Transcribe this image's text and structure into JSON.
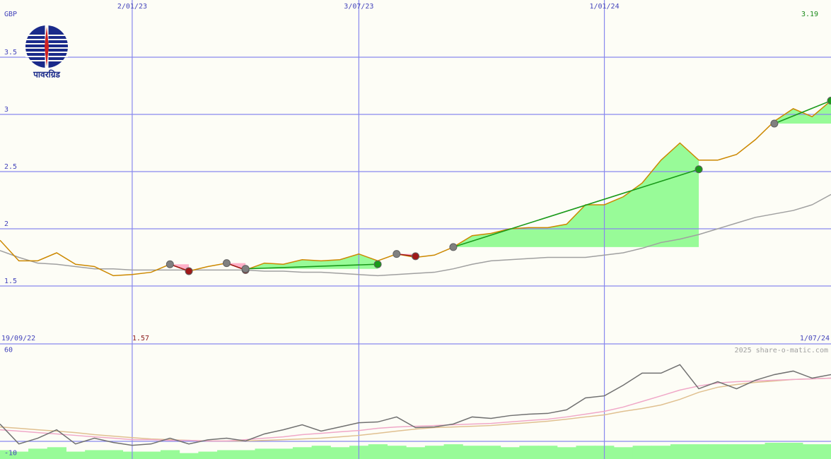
{
  "logo": {
    "text": "पावरग्रिड"
  },
  "chart_data": [
    {
      "type": "line",
      "unit": "GBP",
      "last_price": 3.19,
      "low_price": 1.57,
      "credit": "2025 share-o-matic.com",
      "categories": [
        "19/09/22",
        null,
        null,
        null,
        null,
        null,
        null,
        "2/01/23",
        null,
        null,
        null,
        null,
        null,
        null,
        null,
        null,
        null,
        null,
        null,
        "3/07/23",
        null,
        null,
        null,
        null,
        null,
        null,
        null,
        null,
        null,
        null,
        null,
        null,
        "1/01/24",
        null,
        null,
        null,
        null,
        null,
        null,
        null,
        null,
        null,
        null,
        null,
        "1/07/24"
      ],
      "series": [
        {
          "color": "#a0a0a0",
          "values": [
            1.81,
            1.75,
            1.7,
            1.69,
            1.67,
            1.65,
            1.65,
            1.64,
            1.64,
            1.64,
            1.64,
            1.64,
            1.64,
            1.64,
            1.63,
            1.63,
            1.62,
            1.62,
            1.61,
            1.6,
            1.59,
            1.6,
            1.61,
            1.62,
            1.65,
            1.69,
            1.72,
            1.73,
            1.74,
            1.75,
            1.75,
            1.75,
            1.77,
            1.79,
            1.83,
            1.88,
            1.91,
            1.95,
            2.0,
            2.05,
            2.1,
            2.13,
            2.16,
            2.21,
            2.3
          ]
        },
        {
          "color": "#cc8800",
          "values": [
            1.9,
            1.72,
            1.72,
            1.79,
            1.69,
            1.67,
            1.59,
            1.6,
            1.62,
            1.69,
            1.63,
            1.67,
            1.7,
            1.64,
            1.7,
            1.69,
            1.73,
            1.72,
            1.73,
            1.78,
            1.72,
            1.78,
            1.75,
            1.77,
            1.84,
            1.94,
            1.96,
            2.0,
            2.01,
            2.01,
            2.04,
            2.21,
            2.21,
            2.28,
            2.4,
            2.6,
            2.75,
            2.6,
            2.6,
            2.65,
            2.78,
            2.94,
            3.05,
            2.98,
            3.12
          ]
        }
      ],
      "signals": [
        {
          "start": 9,
          "start_value": 1.69,
          "end": 10,
          "end_value": 1.63,
          "color": "#a01818",
          "fill": "#ffb0c8",
          "start_marker_color": "#808080"
        },
        {
          "start": 12,
          "start_value": 1.7,
          "end": 13,
          "end_value": 1.64,
          "color": "#a01818",
          "fill": "#ffb0c8",
          "start_marker_color": "#808080"
        },
        {
          "start": 13,
          "start_value": 1.65,
          "end": 20,
          "end_value": 1.69,
          "color": "#1a9a1a",
          "fill": "#98fb98",
          "start_marker_color": "#808080"
        },
        {
          "start": 21,
          "start_value": 1.78,
          "end": 22,
          "end_value": 1.76,
          "color": "#a01818",
          "fill": "#ffb0c8",
          "start_marker_color": "#808080"
        },
        {
          "start": 24,
          "start_value": 1.84,
          "end": 37,
          "end_value": 2.52,
          "color": "#1a9a1a",
          "fill": "#98fb98",
          "start_marker_color": "#808080"
        },
        {
          "start": 41,
          "start_value": 2.92,
          "end": 44,
          "end_value": 3.12,
          "color": "#1a9a1a",
          "fill": "#98fb98",
          "start_marker_color": "#808080"
        }
      ],
      "ylim": [
        1,
        4
      ],
      "yticks": [
        1.5,
        2,
        2.5,
        3,
        3.5
      ],
      "grid": true
    },
    {
      "type": "line",
      "series": [
        {
          "color": "#e0c090",
          "values": [
            7.7,
            6.8,
            5.8,
            4.9,
            3.9,
            2.5,
            1.5,
            0.5,
            -0.4,
            -0.9,
            -1.4,
            -1.8,
            -1.8,
            -1.8,
            -1.4,
            -0.9,
            -0.4,
            0.1,
            1.0,
            2.0,
            3.4,
            4.9,
            6.3,
            7.3,
            7.7,
            8.2,
            8.7,
            9.7,
            10.6,
            11.6,
            13.0,
            14.5,
            15.9,
            18.3,
            20.2,
            22.6,
            26.4,
            31.2,
            34.6,
            36.5,
            37.9,
            38.9,
            39.9,
            40.3,
            40.8
          ]
        },
        {
          "color": "#f0a8c8",
          "values": [
            5.8,
            4.9,
            3.9,
            3.0,
            2.0,
            1.0,
            0.1,
            -0.9,
            -0.9,
            -1.4,
            -1.4,
            -1.8,
            -1.8,
            -0.9,
            0.1,
            1.0,
            2.5,
            3.4,
            4.4,
            5.3,
            6.8,
            7.7,
            8.2,
            8.7,
            9.2,
            9.7,
            10.1,
            11.1,
            12.1,
            13.0,
            14.5,
            16.4,
            18.3,
            21.2,
            25.0,
            28.8,
            32.7,
            35.5,
            37.5,
            38.4,
            38.9,
            39.4,
            39.9,
            40.3,
            40.8
          ]
        },
        {
          "color": "#707070",
          "values": [
            9.7,
            -3.8,
            0.1,
            5.8,
            -3.8,
            0.1,
            -2.8,
            -4.7,
            -3.8,
            0.1,
            -3.8,
            -1.0,
            0.1,
            -1.8,
            3.0,
            5.8,
            9.2,
            4.9,
            7.7,
            10.6,
            11.1,
            14.5,
            7.3,
            7.7,
            9.7,
            14.5,
            13.5,
            15.4,
            16.4,
            16.9,
            19.3,
            27.4,
            28.8,
            36.0,
            44.2,
            44.2,
            49.9,
            33.6,
            38.4,
            33.6,
            39.4,
            43.2,
            45.6,
            40.8,
            43.2
          ]
        }
      ],
      "volume": {
        "color": "#98fb98",
        "values": [
          -8,
          -9,
          -7,
          -6,
          -9,
          -8,
          -8,
          -9,
          -9,
          -8,
          -10,
          -9,
          -8,
          -8,
          -7,
          -7,
          -6,
          -5,
          -6,
          -5,
          -4,
          -5,
          -6,
          -5,
          -4,
          -5,
          -5,
          -6,
          -5,
          -5,
          -6,
          -5,
          -5,
          -6,
          -5,
          -5,
          -4,
          -4,
          -4,
          -4,
          -4,
          -3,
          -3,
          -4,
          -4
        ]
      },
      "ylim": [
        -14,
        64
      ],
      "yticks": [
        60,
        -10
      ]
    }
  ]
}
